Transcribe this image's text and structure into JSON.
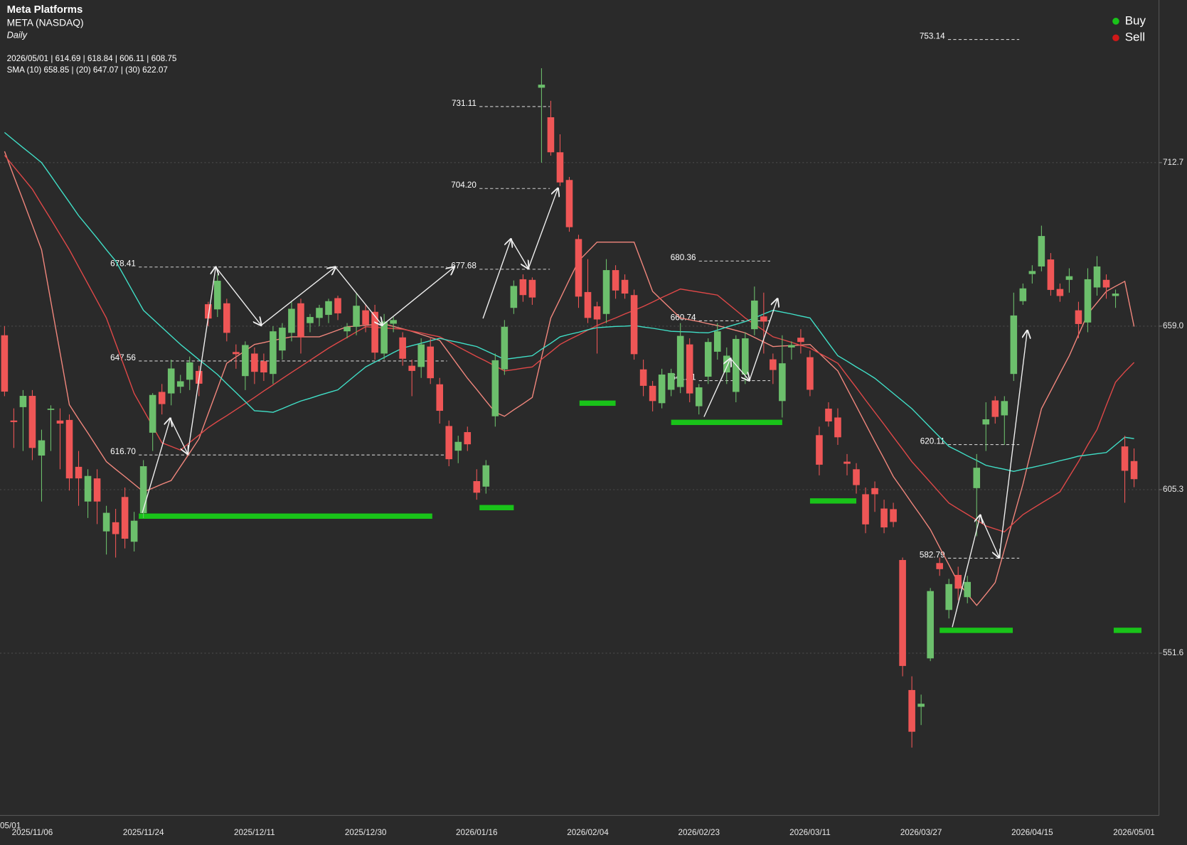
{
  "chart_data": {
    "type": "candlestick",
    "title": "Meta Platforms",
    "subtitle": "META (NASDAQ)",
    "interval": "Daily",
    "ohlc_label": "2026/05/01 | 614.69 | 618.84 | 606.11 | 608.75",
    "sma_label": "SMA (10) 658.85 | (20) 647.07 | (30) 622.07",
    "edge_label": "05/01",
    "categories": [
      null,
      null,
      null,
      "2025/11/06",
      null,
      null,
      null,
      null,
      null,
      null,
      null,
      null,
      null,
      null,
      null,
      "2025/11/24",
      null,
      null,
      null,
      null,
      null,
      null,
      null,
      null,
      null,
      null,
      null,
      "2025/12/11",
      null,
      null,
      null,
      null,
      null,
      null,
      null,
      null,
      null,
      null,
      null,
      "2025/12/30",
      null,
      null,
      null,
      null,
      null,
      null,
      null,
      null,
      null,
      null,
      null,
      "2026/01/16",
      null,
      null,
      null,
      null,
      null,
      null,
      null,
      null,
      null,
      null,
      null,
      "2026/02/04",
      null,
      null,
      null,
      null,
      null,
      null,
      null,
      null,
      null,
      null,
      null,
      "2026/02/23",
      null,
      null,
      null,
      null,
      null,
      null,
      null,
      null,
      null,
      null,
      null,
      "2026/03/11",
      null,
      null,
      null,
      null,
      null,
      null,
      null,
      null,
      null,
      null,
      null,
      "2026/03/27",
      null,
      null,
      null,
      null,
      null,
      null,
      null,
      null,
      null,
      null,
      null,
      "2026/04/15",
      null,
      null,
      null,
      null,
      null,
      null,
      null,
      null,
      null,
      null,
      "2026/05/01"
    ],
    "open": [
      656,
      628,
      632.4,
      636.1,
      616.5,
      631.5,
      628,
      628.2,
      612.8,
      601.4,
      609,
      591.6,
      594.6,
      602.9,
      588.2,
      597.6,
      624,
      637.4,
      636.9,
      639.1,
      641.4,
      644.3,
      666.2,
      664.5,
      666.5,
      650.5,
      642.6,
      650,
      647.5,
      643.3,
      651,
      656.8,
      666.5,
      660,
      661.7,
      662.7,
      668.2,
      657.3,
      658.8,
      664.2,
      663.7,
      650,
      659.8,
      655.3,
      646,
      645.6,
      652.3,
      639.9,
      626.2,
      618.1,
      624.2,
      608.1,
      606.3,
      629.4,
      644.8,
      665,
      674.4,
      674.2,
      737.3,
      727.6,
      716.1,
      707,
      687.6,
      670.2,
      665.5,
      663,
      677.4,
      674.2,
      669.2,
      644.8,
      639.4,
      633.7,
      638.1,
      639,
      653,
      632.7,
      642.4,
      650.6,
      643.8,
      637.4,
      643.1,
      658,
      662.2,
      648.1,
      634.4,
      652,
      655.2,
      648.8,
      623.2,
      631.9,
      629,
      614.5,
      612,
      603.8,
      605.8,
      599.1,
      598.9,
      582.2,
      539.5,
      534,
      549.9,
      581.2,
      565.8,
      577.3,
      570,
      605.8,
      626.7,
      634.6,
      629.7,
      643.3,
      667.2,
      676.1,
      678.6,
      680.9,
      671.2,
      674.2,
      664.2,
      660.2,
      671.7,
      674.2,
      668.9,
      619.5,
      614.69
    ],
    "high": [
      659,
      632,
      638,
      638,
      625,
      633,
      632,
      630,
      618,
      612,
      612,
      600,
      599,
      606,
      598,
      615,
      637,
      640,
      648,
      643,
      649,
      646,
      667,
      676,
      668,
      653,
      654,
      652,
      650,
      659,
      660,
      667,
      668,
      663,
      666,
      668,
      669,
      660,
      670,
      666,
      666,
      663,
      662,
      657,
      648,
      655,
      655,
      642,
      628,
      623,
      626,
      612,
      615,
      650,
      661,
      674,
      676,
      675,
      743.7,
      733,
      722,
      708,
      689,
      681,
      667,
      681,
      679,
      676,
      671,
      648,
      641,
      645,
      645,
      660,
      655,
      640,
      655,
      660,
      652,
      656,
      657,
      672,
      670,
      650,
      656,
      654,
      658,
      651,
      626,
      634,
      632,
      617,
      614,
      606,
      608,
      602,
      601,
      583,
      544,
      538,
      573,
      583,
      576,
      580,
      577,
      617,
      634,
      636,
      636,
      670,
      673,
      679,
      692,
      683,
      673,
      678,
      667,
      678,
      682,
      676,
      671,
      623,
      618.84
    ],
    "low": [
      636,
      619,
      618,
      615,
      601.4,
      618,
      612,
      605,
      600,
      596,
      594,
      584,
      583,
      586,
      585,
      596,
      618,
      630,
      633,
      637,
      638,
      636,
      659,
      662,
      654,
      645,
      638,
      640,
      641,
      640,
      648,
      654,
      650,
      657,
      659,
      660,
      661,
      655,
      656,
      657,
      648,
      648,
      657,
      646,
      636,
      642,
      640,
      627,
      613,
      614,
      618,
      602,
      604,
      626,
      643,
      663,
      667,
      666,
      712.7,
      715,
      705,
      690,
      665,
      660,
      650,
      660,
      668,
      668,
      648,
      636,
      631,
      632,
      636,
      637,
      634,
      630,
      640,
      648,
      640,
      634,
      640,
      656,
      650,
      640,
      629,
      648,
      650,
      636,
      610,
      626,
      620,
      610,
      604,
      591,
      598,
      591,
      593,
      544,
      520.6,
      528,
      549,
      577,
      563,
      569,
      568,
      590,
      618,
      627,
      620,
      641,
      666,
      673,
      677,
      669,
      667,
      670,
      655,
      657,
      669,
      668,
      665,
      601,
      606.11
    ],
    "close": [
      637.5,
      627.5,
      636.1,
      619,
      621.5,
      631.9,
      627,
      609,
      609,
      609.8,
      601.4,
      597.7,
      590.7,
      589.2,
      595.1,
      613,
      636.4,
      633.4,
      645.1,
      640.9,
      647.1,
      640.1,
      661.5,
      673.9,
      656.8,
      649.8,
      652.8,
      644,
      643.8,
      657.3,
      658.5,
      664.7,
      655.3,
      662,
      665,
      667.2,
      663.2,
      658.8,
      665.7,
      659.5,
      650.3,
      660.5,
      661,
      648.3,
      644.3,
      653,
      641.9,
      631.2,
      615.3,
      621,
      620.2,
      604.3,
      613.3,
      647.8,
      658.8,
      672.2,
      669.2,
      668.4,
      738.3,
      716.1,
      706.2,
      691.5,
      668.7,
      661.7,
      661.2,
      677.4,
      670.7,
      669.7,
      649.8,
      639.4,
      634.4,
      643.1,
      643.6,
      655.8,
      636.9,
      638.9,
      653.8,
      657.3,
      649.3,
      654.8,
      655,
      667.4,
      660.5,
      644.6,
      646.8,
      652.8,
      653.8,
      638.1,
      613.5,
      627.7,
      622.5,
      613.8,
      606.8,
      593.9,
      603.8,
      592.9,
      594.7,
      547.4,
      525.8,
      535,
      572,
      579.2,
      574.3,
      572.8,
      575,
      612.5,
      628.4,
      629.2,
      634.4,
      662.5,
      671.4,
      677.1,
      688.6,
      670.9,
      668.9,
      675.4,
      659.7,
      674.4,
      678.6,
      671.7,
      669.7,
      611.5,
      608.75
    ],
    "up_color": "#6cbf6c",
    "down_color": "#ef5656",
    "series": [
      {
        "color": "#f2877d",
        "values": [
          716.4,
          708.3,
          700.3,
          692.2,
          684.1,
          667.1,
          650.2,
          633.2,
          628.5,
          623.9,
          619.2,
          614.5,
          612,
          609.6,
          607.1,
          604.6,
          605.8,
          607.1,
          608.3,
          612.9,
          617.4,
          622,
          630.3,
          638.5,
          646.8,
          648.9,
          650.9,
          653,
          653.6,
          654.3,
          654.9,
          655.5,
          655.5,
          655.5,
          655.5,
          656.6,
          657.7,
          658.8,
          659,
          659.3,
          659.5,
          659.7,
          658.9,
          658.1,
          657.3,
          656.3,
          655.3,
          654.3,
          650.2,
          646,
          641.9,
          638.2,
          634.4,
          630.7,
          629.4,
          631.5,
          633.5,
          635.6,
          648.7,
          661.7,
          667.9,
          674.2,
          680.4,
          683.5,
          686.6,
          686.6,
          686.6,
          686.6,
          686.6,
          678.5,
          670.4,
          667.5,
          664.6,
          661.7,
          661.1,
          660.5,
          659.8,
          659.2,
          658.4,
          657.6,
          656.8,
          655.3,
          653.8,
          652.3,
          652.5,
          652.6,
          652.8,
          653,
          650.1,
          647.2,
          644.3,
          638.5,
          632.7,
          626.9,
          621.1,
          615.4,
          609.6,
          605.3,
          600.9,
          596.6,
          592.2,
          586.4,
          580.6,
          574.8,
          571,
          567.3,
          571,
          574.8,
          585.6,
          596.3,
          607.1,
          619.5,
          631.9,
          637.7,
          643.5,
          649.3,
          656.2,
          663,
          666.7,
          670.4,
          672.1,
          673.7,
          658.85
        ]
      },
      {
        "color": "#e04848",
        "values": [
          715.1,
          711.4,
          707.7,
          704,
          699,
          694.1,
          689.1,
          684.1,
          678.5,
          672.9,
          667.3,
          661.7,
          653.4,
          645.2,
          636.9,
          631.5,
          626.1,
          620.7,
          619.5,
          618.3,
          620.8,
          623.2,
          625.7,
          627.7,
          629.6,
          631.6,
          633.6,
          635.6,
          637.7,
          639.7,
          641.8,
          643.8,
          645.8,
          647.8,
          649.8,
          651.8,
          653.6,
          655.3,
          657.1,
          658.8,
          658.6,
          658.4,
          658.2,
          658,
          657.4,
          656.8,
          656.1,
          655.5,
          653.9,
          652.2,
          650.6,
          649,
          647.5,
          645.9,
          644.3,
          644.7,
          645.2,
          645.6,
          648.1,
          650.5,
          653,
          654.6,
          656.1,
          657.7,
          659.2,
          660.5,
          661.7,
          663,
          664.2,
          665.5,
          666.9,
          668.4,
          669.8,
          671.2,
          670.7,
          670.2,
          669.7,
          669.2,
          666.7,
          664.2,
          661.7,
          659.6,
          657.6,
          655.5,
          654.6,
          653.7,
          652.7,
          651.8,
          650.1,
          648.5,
          646.8,
          642.8,
          638.8,
          634.7,
          630.7,
          626.7,
          622.6,
          618.6,
          614.5,
          611.1,
          607.7,
          604.3,
          600.9,
          599,
          597.2,
          595.3,
          593.4,
          592.4,
          591.4,
          594.3,
          597.1,
          599,
          600.9,
          602.7,
          604.6,
          609.6,
          614.5,
          620,
          625,
          633,
          640.6,
          644,
          647.07
        ]
      },
      {
        "color": "#40e0c8",
        "values": [
          722.6,
          720.1,
          717.6,
          715.2,
          712.7,
          708.4,
          704,
          699.7,
          695.3,
          691.6,
          687.9,
          684.1,
          680.4,
          675,
          669.6,
          664.2,
          661.4,
          658.6,
          655.8,
          653,
          650.5,
          648,
          645.6,
          643.1,
          640.1,
          637.2,
          634.2,
          631.2,
          631,
          630.7,
          631.9,
          633.2,
          634.4,
          635.3,
          636.3,
          637.2,
          638.1,
          640.6,
          643.1,
          645.6,
          647.2,
          648.7,
          650.3,
          651.8,
          652.6,
          653.4,
          654.2,
          655,
          654.3,
          653.7,
          653,
          652.3,
          650.9,
          649.5,
          648.1,
          648.5,
          648.9,
          649.3,
          651.4,
          653.4,
          655.5,
          656.3,
          657,
          657.8,
          658.5,
          658.7,
          658.9,
          659,
          659.2,
          658.7,
          658.3,
          657.8,
          657.3,
          657.2,
          657.1,
          656.9,
          656.8,
          657.7,
          658.7,
          659.6,
          660.5,
          661.7,
          663,
          664.2,
          663.6,
          663,
          662.3,
          661.7,
          657.6,
          653.4,
          649.3,
          647.5,
          645.6,
          643.8,
          641.9,
          639.4,
          636.9,
          634.4,
          631.9,
          628.8,
          625.7,
          622.6,
          619.5,
          618,
          616.4,
          614.9,
          613.3,
          612.6,
          612,
          611.3,
          612,
          612.6,
          613.3,
          614,
          614.8,
          615.5,
          616.3,
          616.7,
          617.1,
          617.5,
          620,
          622.5,
          622.07
        ]
      }
    ],
    "levels": [
      753.14,
      731.11,
      {
        "value": 704.2,
        "label": "704.20"
      },
      677.68,
      678.41,
      647.56,
      {
        "value": 616.7,
        "label": "616.70"
      },
      680.36,
      660.74,
      641.11,
      620.11,
      582.79
    ],
    "zones": {
      "color": "#19c319",
      "values": [
        596.6,
        599.4,
        633.7,
        627.4,
        601.6,
        559.1,
        559.1
      ]
    },
    "legend": [
      {
        "name": "Buy",
        "color": "#19c319"
      },
      {
        "name": "Sell",
        "color": "#d01818"
      }
    ],
    "ylim": [
      498.3,
      766.1
    ],
    "yticks": [
      712.7,
      {
        "value": 659,
        "label": "659.0"
      },
      605.3,
      551.6
    ],
    "grid": true
  }
}
